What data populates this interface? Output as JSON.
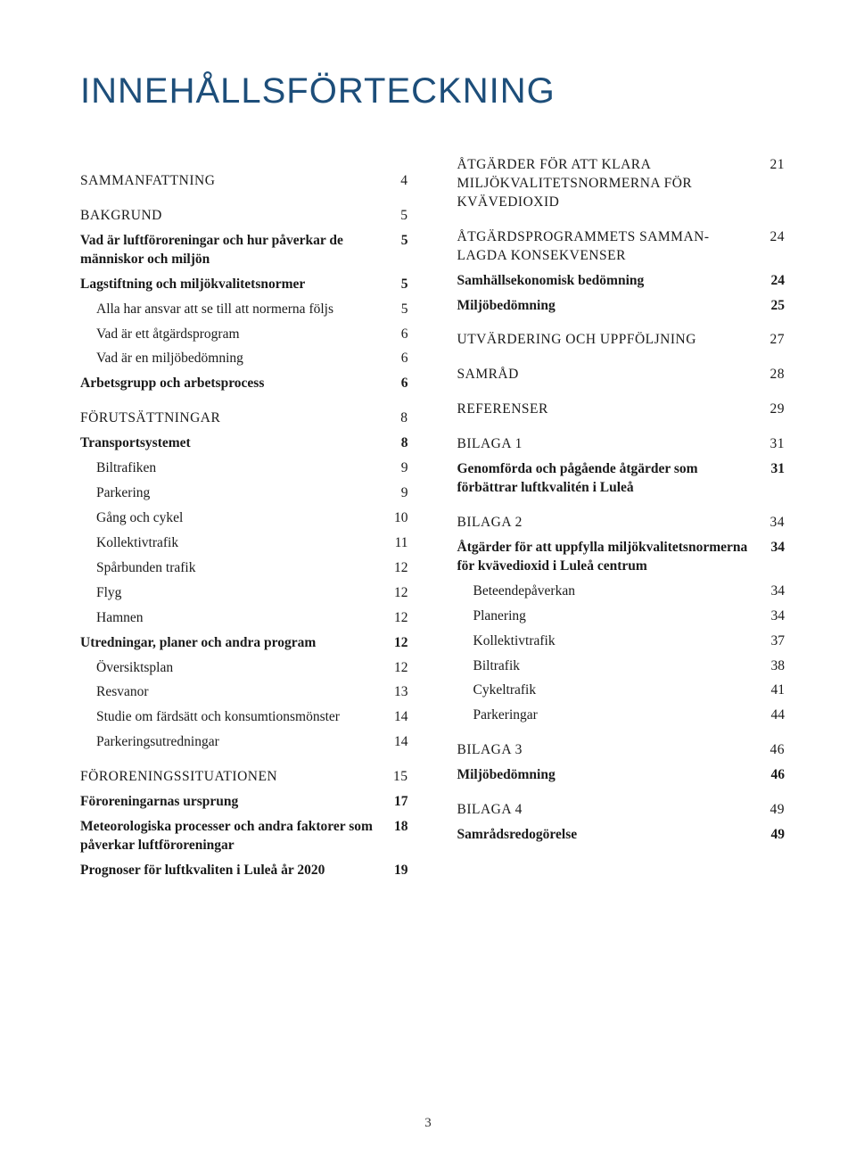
{
  "title": "INNEHÅLLSFÖRTECKNING",
  "title_color": "#1d4e7a",
  "title_fontsize": 40,
  "body_fontsize": 15.5,
  "text_color": "#1a1a1a",
  "background_color": "#ffffff",
  "page_number": "3",
  "left_column": [
    {
      "label": "SAMMANFATTNING",
      "page": "4",
      "caps": true,
      "gap": true
    },
    {
      "label": "BAKGRUND",
      "page": "5",
      "caps": true,
      "gap": true
    },
    {
      "label": "Vad är luftföroreningar och hur påverkar de människor och miljön",
      "page": "5",
      "bold": true
    },
    {
      "label": "Lagstiftning och miljökvalitetsnormer",
      "page": "5",
      "bold": true
    },
    {
      "label": "Alla har ansvar att se till att normerna följs",
      "page": "5",
      "indent": 1
    },
    {
      "label": "Vad är ett åtgärdsprogram",
      "page": "6",
      "indent": 1
    },
    {
      "label": "Vad är en miljöbedömning",
      "page": "6",
      "indent": 1
    },
    {
      "label": "Arbetsgrupp och arbetsprocess",
      "page": "6",
      "bold": true
    },
    {
      "label": "FÖRUTSÄTTNINGAR",
      "page": "8",
      "caps": true,
      "gap": true
    },
    {
      "label": "Transportsystemet",
      "page": "8",
      "bold": true
    },
    {
      "label": "Biltrafiken",
      "page": "9",
      "indent": 1
    },
    {
      "label": "Parkering",
      "page": "9",
      "indent": 1
    },
    {
      "label": "Gång och cykel",
      "page": "10",
      "indent": 1
    },
    {
      "label": "Kollektivtrafik",
      "page": "11",
      "indent": 1
    },
    {
      "label": "Spårbunden trafik",
      "page": "12",
      "indent": 1
    },
    {
      "label": "Flyg",
      "page": "12",
      "indent": 1
    },
    {
      "label": "Hamnen",
      "page": "12",
      "indent": 1
    },
    {
      "label": "Utredningar, planer och andra program",
      "page": "12",
      "bold": true
    },
    {
      "label": "Översiktsplan",
      "page": "12",
      "indent": 1
    },
    {
      "label": "Resvanor",
      "page": "13",
      "indent": 1
    },
    {
      "label": "Studie om färdsätt och konsumtionsmönster",
      "page": "14",
      "indent": 1
    },
    {
      "label": "Parkeringsutredningar",
      "page": "14",
      "indent": 1
    },
    {
      "label": "FÖRORENINGSSITUATIONEN",
      "page": "15",
      "caps": true,
      "gap": true
    },
    {
      "label": "Föroreningarnas ursprung",
      "page": "17",
      "bold": true
    },
    {
      "label": "Meteorologiska processer och andra faktorer som påverkar luftföroreningar",
      "page": "18",
      "bold": true
    },
    {
      "label": "Prognoser för luftkvaliten i Luleå år 2020",
      "page": "19",
      "bold": true
    }
  ],
  "right_column": [
    {
      "label": "ÅTGÄRDER FÖR ATT KLARA MILJÖKVALITETSNORMERNA FÖR KVÄVEDIOXID",
      "page": "21",
      "caps": true
    },
    {
      "label": "ÅTGÄRDSPROGRAMMETS SAMMAN­LAGDA KONSEKVENSER",
      "page": "24",
      "caps": true,
      "gap": true
    },
    {
      "label": "Samhällsekonomisk bedömning",
      "page": "24",
      "bold": true
    },
    {
      "label": "Miljöbedömning",
      "page": "25",
      "bold": true
    },
    {
      "label": "UTVÄRDERING OCH UPPFÖLJNING",
      "page": "27",
      "caps": true,
      "gap": true
    },
    {
      "label": "SAMRÅD",
      "page": "28",
      "caps": true,
      "gap": true
    },
    {
      "label": "REFERENSER",
      "page": "29",
      "caps": true,
      "gap": true
    },
    {
      "label": "BILAGA 1",
      "page": "31",
      "caps": true,
      "gap": true
    },
    {
      "label": "Genomförda och pågående åtgärder som förbättrar luftkvalitén i Luleå",
      "page": "31",
      "bold": true
    },
    {
      "label": "BILAGA 2",
      "page": "34",
      "caps": true,
      "gap": true
    },
    {
      "label": "Åtgärder för att uppfylla miljökvalitetsnormerna för kvävedioxid i Luleå centrum",
      "page": "34",
      "bold": true
    },
    {
      "label": "Beteendepåverkan",
      "page": "34",
      "indent": 1
    },
    {
      "label": "Planering",
      "page": "34",
      "indent": 1
    },
    {
      "label": "Kollektivtrafik",
      "page": "37",
      "indent": 1
    },
    {
      "label": "Biltrafik",
      "page": "38",
      "indent": 1
    },
    {
      "label": "Cykeltrafik",
      "page": "41",
      "indent": 1
    },
    {
      "label": "Parkeringar",
      "page": "44",
      "indent": 1
    },
    {
      "label": "BILAGA 3",
      "page": "46",
      "caps": true,
      "gap": true
    },
    {
      "label": "Miljöbedömning",
      "page": "46",
      "bold": true
    },
    {
      "label": "BILAGA 4",
      "page": "49",
      "caps": true,
      "gap": true
    },
    {
      "label": "Samrådsredogörelse",
      "page": "49",
      "bold": true
    }
  ]
}
